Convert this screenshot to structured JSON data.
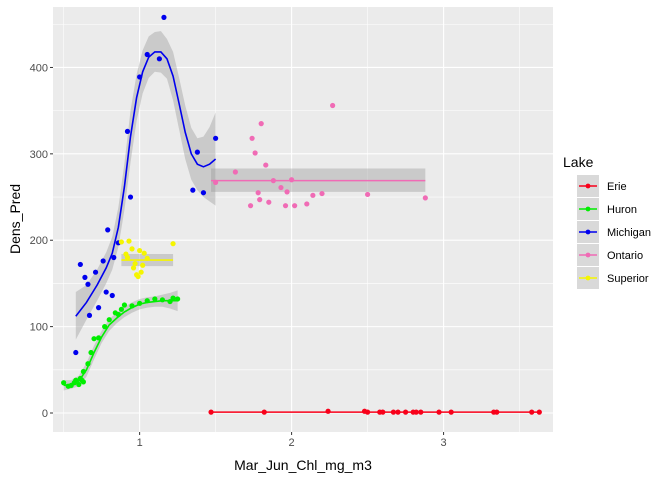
{
  "chart_data": {
    "type": "scatter",
    "xlabel": "Mar_Jun_Chl_mg_m3",
    "ylabel": "Dens_Pred",
    "xlim": [
      0.43,
      3.72
    ],
    "ylim": [
      -22,
      470
    ],
    "x_ticks": [
      1,
      2,
      3
    ],
    "x_tick_labels": [
      "1",
      "2",
      "3"
    ],
    "y_ticks": [
      0,
      100,
      200,
      300,
      400
    ],
    "y_tick_labels": [
      "0",
      "100",
      "200",
      "300",
      "400"
    ],
    "grid": true,
    "legend_title": "Lake",
    "legend_position": "right",
    "series": [
      {
        "name": "Erie",
        "color": "#F8001A",
        "points": [
          [
            1.47,
            1
          ],
          [
            1.82,
            1
          ],
          [
            2.24,
            2
          ],
          [
            2.48,
            2
          ],
          [
            2.5,
            1
          ],
          [
            2.58,
            1
          ],
          [
            2.6,
            1
          ],
          [
            2.67,
            1
          ],
          [
            2.7,
            1
          ],
          [
            2.75,
            1
          ],
          [
            2.8,
            1
          ],
          [
            2.82,
            1
          ],
          [
            2.85,
            1
          ],
          [
            2.97,
            1
          ],
          [
            3.05,
            1
          ],
          [
            3.33,
            1
          ],
          [
            3.35,
            1
          ],
          [
            3.58,
            1
          ],
          [
            3.63,
            1
          ]
        ],
        "fit": [
          [
            1.47,
            1
          ],
          [
            3.63,
            1
          ]
        ],
        "band": []
      },
      {
        "name": "Huron",
        "color": "#00EE00",
        "points": [
          [
            0.5,
            35
          ],
          [
            0.53,
            31
          ],
          [
            0.55,
            32
          ],
          [
            0.57,
            35
          ],
          [
            0.58,
            38
          ],
          [
            0.6,
            33
          ],
          [
            0.61,
            40
          ],
          [
            0.62,
            38
          ],
          [
            0.63,
            36
          ],
          [
            0.63,
            48
          ],
          [
            0.66,
            57
          ],
          [
            0.68,
            70
          ],
          [
            0.7,
            86
          ],
          [
            0.73,
            87
          ],
          [
            0.77,
            100
          ],
          [
            0.8,
            108
          ],
          [
            0.84,
            116
          ],
          [
            0.86,
            114
          ],
          [
            0.88,
            120
          ],
          [
            0.9,
            125
          ],
          [
            0.95,
            124
          ],
          [
            1.0,
            127
          ],
          [
            1.05,
            130
          ],
          [
            1.1,
            132
          ],
          [
            1.15,
            131
          ],
          [
            1.2,
            129
          ],
          [
            1.22,
            133
          ],
          [
            1.25,
            132
          ]
        ],
        "fit": [
          [
            0.5,
            32
          ],
          [
            0.55,
            33
          ],
          [
            0.6,
            37
          ],
          [
            0.65,
            50
          ],
          [
            0.7,
            70
          ],
          [
            0.75,
            88
          ],
          [
            0.8,
            102
          ],
          [
            0.85,
            110
          ],
          [
            0.9,
            117
          ],
          [
            0.95,
            122
          ],
          [
            1.0,
            126
          ],
          [
            1.05,
            128
          ],
          [
            1.1,
            129
          ],
          [
            1.15,
            130
          ],
          [
            1.2,
            130
          ],
          [
            1.25,
            130
          ]
        ],
        "band": [
          [
            0.5,
            26,
            38
          ],
          [
            0.55,
            28,
            38
          ],
          [
            0.6,
            31,
            43
          ],
          [
            0.65,
            42,
            58
          ],
          [
            0.7,
            62,
            78
          ],
          [
            0.75,
            81,
            95
          ],
          [
            0.8,
            95,
            109
          ],
          [
            0.85,
            104,
            116
          ],
          [
            0.9,
            111,
            123
          ],
          [
            0.95,
            116,
            128
          ],
          [
            1.0,
            120,
            132
          ],
          [
            1.05,
            122,
            134
          ],
          [
            1.1,
            123,
            135
          ],
          [
            1.15,
            123,
            137
          ],
          [
            1.2,
            121,
            139
          ],
          [
            1.25,
            118,
            142
          ]
        ]
      },
      {
        "name": "Michigan",
        "color": "#0000EE",
        "points": [
          [
            0.58,
            70
          ],
          [
            0.61,
            172
          ],
          [
            0.64,
            157
          ],
          [
            0.66,
            149
          ],
          [
            0.67,
            113
          ],
          [
            0.71,
            163
          ],
          [
            0.73,
            122
          ],
          [
            0.76,
            176
          ],
          [
            0.78,
            140
          ],
          [
            0.79,
            212
          ],
          [
            0.82,
            136
          ],
          [
            0.83,
            180
          ],
          [
            0.86,
            197
          ],
          [
            0.92,
            326
          ],
          [
            0.94,
            250
          ],
          [
            1.0,
            389
          ],
          [
            1.05,
            415
          ],
          [
            1.13,
            410
          ],
          [
            1.16,
            458
          ],
          [
            1.35,
            258
          ],
          [
            1.38,
            302
          ],
          [
            1.42,
            255
          ],
          [
            1.5,
            318
          ]
        ],
        "fit": [
          [
            0.58,
            112
          ],
          [
            0.65,
            128
          ],
          [
            0.72,
            148
          ],
          [
            0.78,
            168
          ],
          [
            0.82,
            185
          ],
          [
            0.86,
            215
          ],
          [
            0.9,
            262
          ],
          [
            0.94,
            320
          ],
          [
            0.98,
            365
          ],
          [
            1.02,
            395
          ],
          [
            1.06,
            412
          ],
          [
            1.1,
            418
          ],
          [
            1.14,
            418
          ],
          [
            1.18,
            410
          ],
          [
            1.22,
            390
          ],
          [
            1.26,
            358
          ],
          [
            1.3,
            325
          ],
          [
            1.34,
            300
          ],
          [
            1.38,
            288
          ],
          [
            1.42,
            285
          ],
          [
            1.46,
            288
          ],
          [
            1.5,
            294
          ]
        ],
        "band": [
          [
            0.58,
            85,
            140
          ],
          [
            0.65,
            108,
            148
          ],
          [
            0.72,
            130,
            166
          ],
          [
            0.78,
            150,
            186
          ],
          [
            0.82,
            166,
            204
          ],
          [
            0.86,
            192,
            238
          ],
          [
            0.9,
            235,
            289
          ],
          [
            0.94,
            290,
            350
          ],
          [
            0.98,
            338,
            392
          ],
          [
            1.02,
            370,
            420
          ],
          [
            1.06,
            388,
            436
          ],
          [
            1.1,
            395,
            441
          ],
          [
            1.14,
            394,
            442
          ],
          [
            1.18,
            387,
            433
          ],
          [
            1.22,
            362,
            418
          ],
          [
            1.26,
            328,
            388
          ],
          [
            1.3,
            294,
            356
          ],
          [
            1.34,
            270,
            330
          ],
          [
            1.38,
            258,
            318
          ],
          [
            1.42,
            250,
            320
          ],
          [
            1.46,
            245,
            331
          ],
          [
            1.5,
            240,
            348
          ]
        ]
      },
      {
        "name": "Ontario",
        "color": "#F06BB5",
        "points": [
          [
            1.5,
            267
          ],
          [
            1.63,
            279
          ],
          [
            1.73,
            240
          ],
          [
            1.74,
            318
          ],
          [
            1.76,
            301
          ],
          [
            1.78,
            255
          ],
          [
            1.79,
            247
          ],
          [
            1.8,
            335
          ],
          [
            1.83,
            287
          ],
          [
            1.85,
            244
          ],
          [
            1.88,
            269
          ],
          [
            1.93,
            261
          ],
          [
            1.96,
            240
          ],
          [
            1.97,
            256
          ],
          [
            2.0,
            270
          ],
          [
            2.02,
            240
          ],
          [
            2.1,
            242
          ],
          [
            2.14,
            252
          ],
          [
            2.2,
            254
          ],
          [
            2.27,
            356
          ],
          [
            2.5,
            253
          ],
          [
            2.88,
            249
          ]
        ],
        "fit": [
          [
            1.47,
            269
          ],
          [
            2.88,
            269
          ]
        ],
        "band": [
          [
            1.47,
            256,
            283
          ],
          [
            2.88,
            256,
            283
          ]
        ]
      },
      {
        "name": "Superior",
        "color": "#F5F500",
        "points": [
          [
            0.88,
            198
          ],
          [
            0.91,
            184
          ],
          [
            0.92,
            180
          ],
          [
            0.93,
            199
          ],
          [
            0.95,
            190
          ],
          [
            0.96,
            168
          ],
          [
            0.97,
            173
          ],
          [
            0.98,
            160
          ],
          [
            0.99,
            158
          ],
          [
            1.0,
            188
          ],
          [
            1.01,
            163
          ],
          [
            1.02,
            171
          ],
          [
            1.03,
            185
          ],
          [
            1.05,
            179
          ],
          [
            1.22,
            196
          ]
        ],
        "fit": [
          [
            0.88,
            177
          ],
          [
            1.22,
            177
          ]
        ],
        "band": [
          [
            0.88,
            170,
            184
          ],
          [
            1.22,
            170,
            184
          ]
        ]
      }
    ]
  }
}
